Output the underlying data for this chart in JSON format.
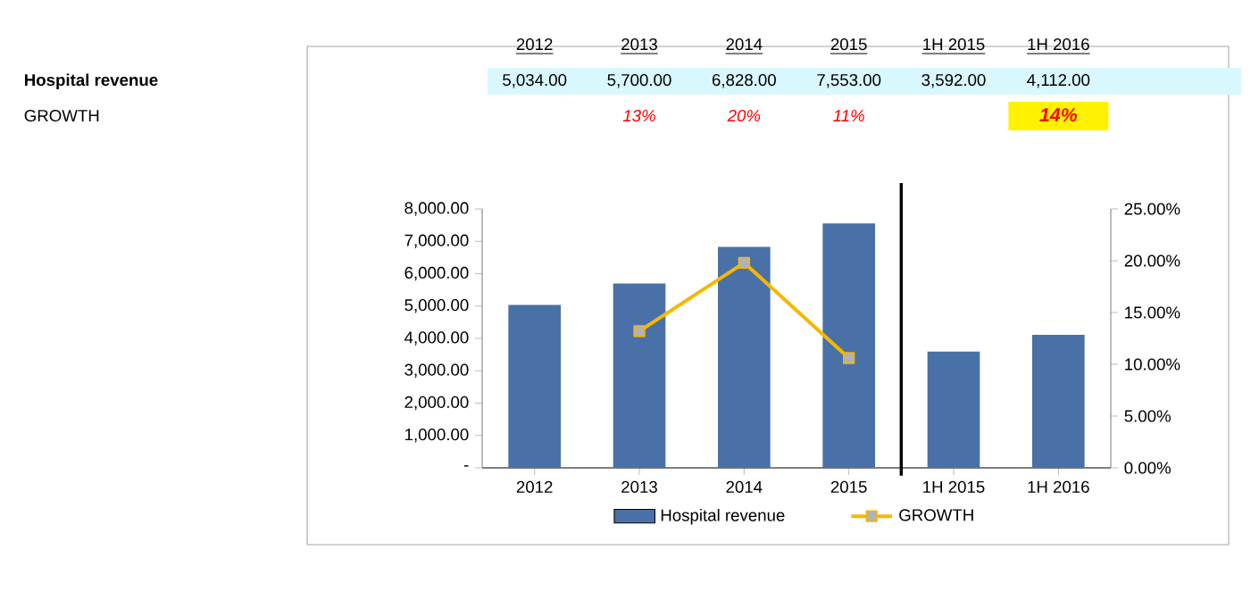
{
  "chart_data": {
    "type": "bar",
    "categories": [
      "2012",
      "2013",
      "2014",
      "2015",
      "1H 2015",
      "1H 2016"
    ],
    "series": [
      {
        "name": "Hospital revenue",
        "color": "#4a70a8",
        "values": [
          5034,
          5700,
          6828,
          7553,
          3592,
          4112
        ],
        "value_labels": [
          "5,034.00",
          "5,700.00",
          "6,828.00",
          "7,553.00",
          "3,592.00",
          "4,112.00"
        ]
      },
      {
        "name": "GROWTH",
        "type": "line",
        "axis": "y2",
        "color": "#f5b800",
        "marker": "square",
        "values": [
          null,
          13.2,
          19.8,
          10.6,
          null,
          null
        ],
        "value_labels": [
          null,
          "13%",
          "20%",
          "11%",
          null,
          "14%"
        ]
      }
    ],
    "ylim": [
      0,
      8000
    ],
    "yticks": [
      {
        "value": 0,
        "label": "-"
      },
      {
        "value": 1000,
        "label": "1,000.00"
      },
      {
        "value": 2000,
        "label": "2,000.00"
      },
      {
        "value": 3000,
        "label": "3,000.00"
      },
      {
        "value": 4000,
        "label": "4,000.00"
      },
      {
        "value": 5000,
        "label": "5,000.00"
      },
      {
        "value": 6000,
        "label": "6,000.00"
      },
      {
        "value": 7000,
        "label": "7,000.00"
      },
      {
        "value": 8000,
        "label": "8,000.00"
      }
    ],
    "y2lim": [
      0,
      25
    ],
    "y2ticks": [
      {
        "value": 0,
        "label": "0.00%"
      },
      {
        "value": 5,
        "label": "5.00%"
      },
      {
        "value": 10,
        "label": "10.00%"
      },
      {
        "value": 15,
        "label": "15.00%"
      },
      {
        "value": 20,
        "label": "20.00%"
      },
      {
        "value": 25,
        "label": "25.00%"
      }
    ],
    "grid": false,
    "legend": "bottom"
  }
}
